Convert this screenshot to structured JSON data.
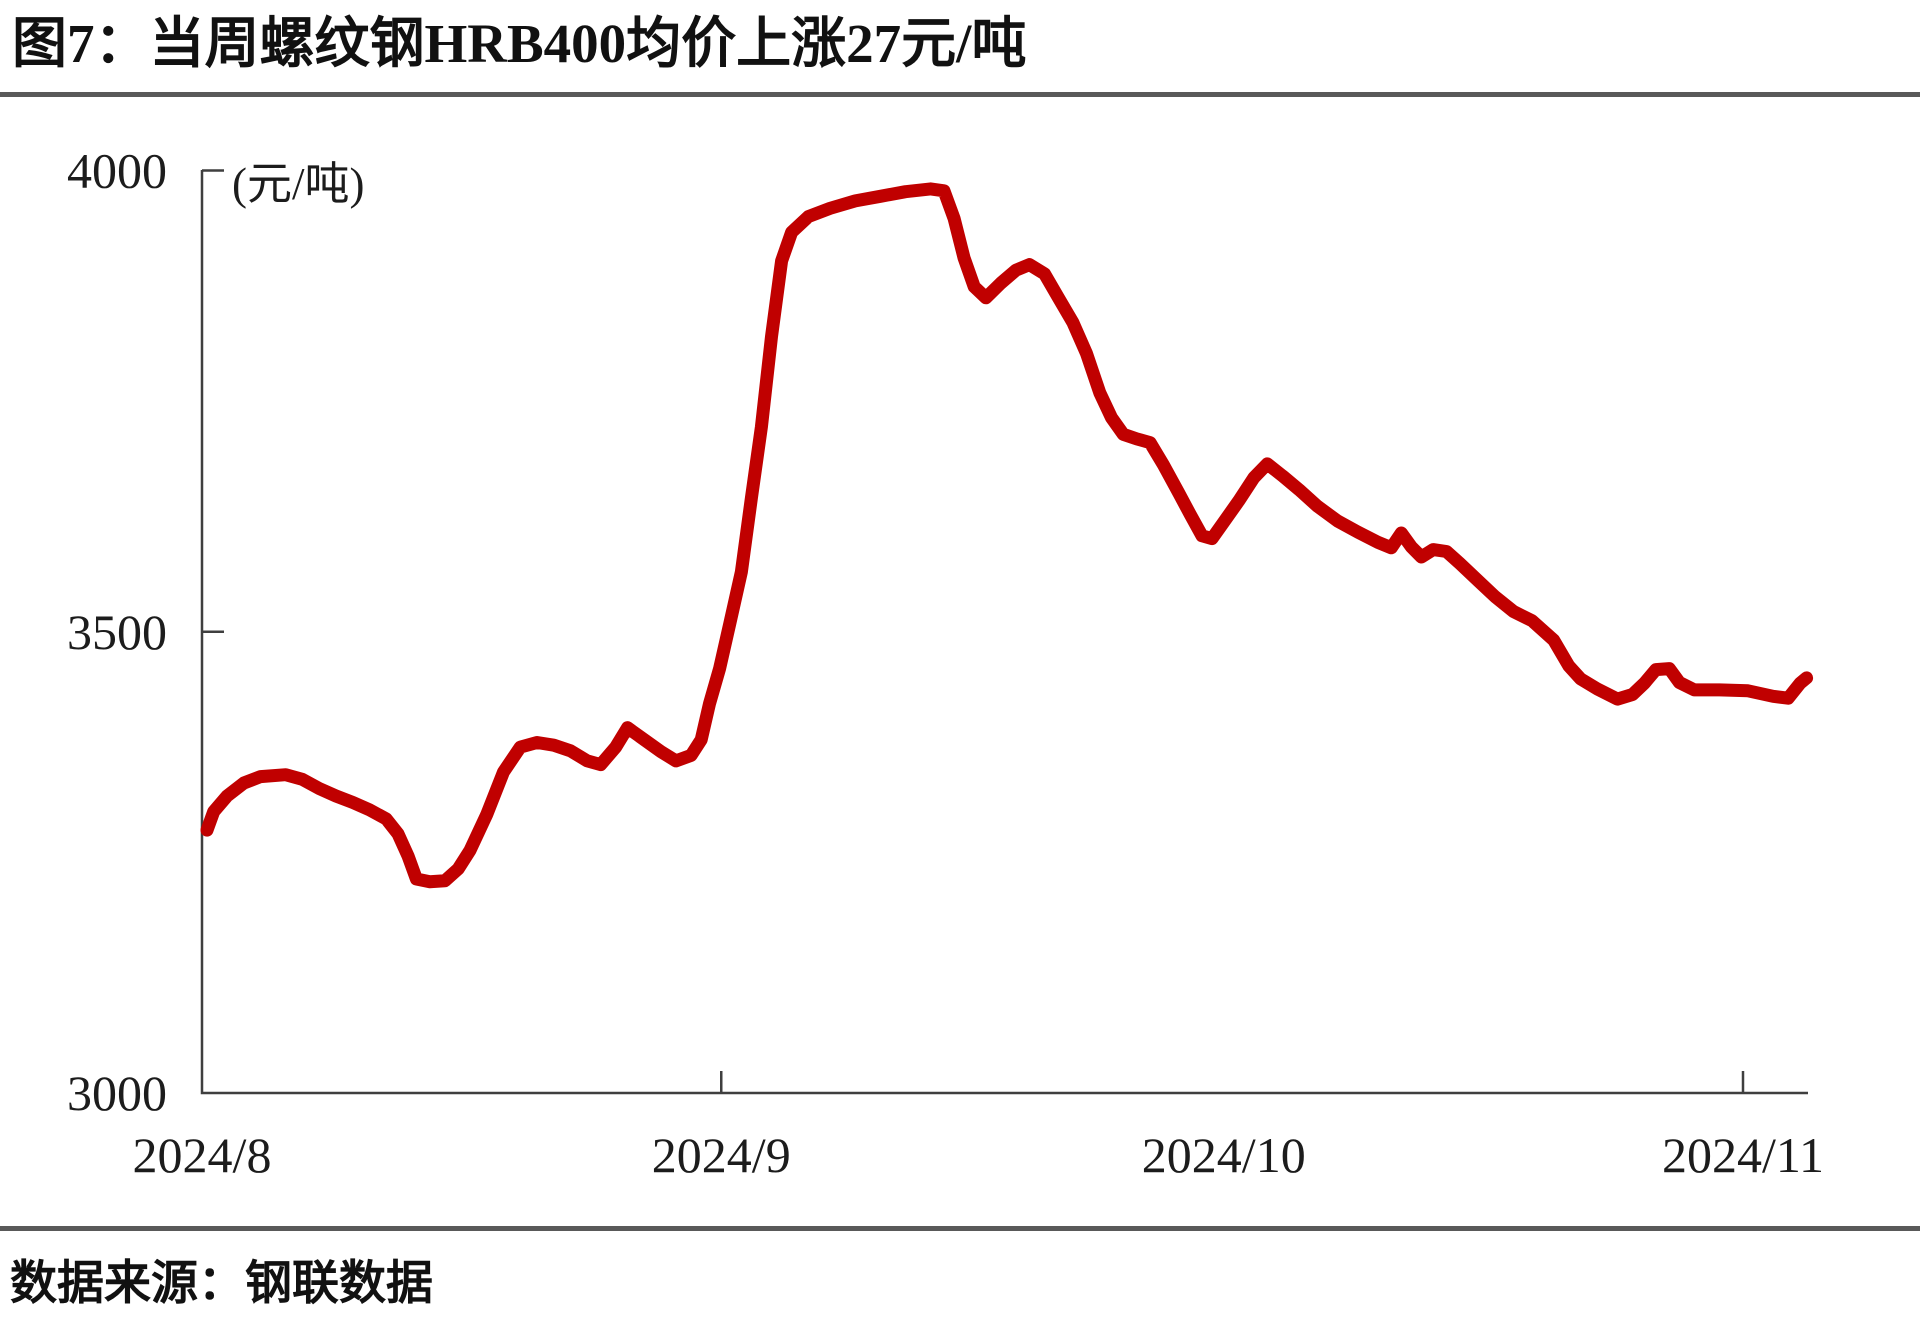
{
  "header": {
    "title": "图7：当周螺纹钢HRB400均价上涨27元/吨"
  },
  "footer": {
    "source": "数据来源：钢联数据"
  },
  "chart_data": {
    "type": "line",
    "title": "图7：当周螺纹钢HRB400均价上涨27元/吨",
    "unit_label": "(元/吨)",
    "legend_position": "none",
    "grid": false,
    "line_color": "#c00000",
    "axis_color": "#3f3f3f",
    "x_axis": {
      "epoch": "2024/8/1",
      "range_days": [
        0,
        96
      ],
      "month_labels": [
        {
          "day": 0,
          "label": "2024/8"
        },
        {
          "day": 31,
          "label": "2024/9"
        },
        {
          "day": 61,
          "label": "2024/10"
        },
        {
          "day": 92,
          "label": "2024/11"
        }
      ],
      "tick_days": [
        31,
        92
      ]
    },
    "y_axis": {
      "min": 3000,
      "max": 4000,
      "ticks": [
        {
          "value": 3000,
          "label": "3000"
        },
        {
          "value": 3500,
          "label": "3500"
        },
        {
          "value": 4000,
          "label": "4000"
        }
      ]
    },
    "series": [
      {
        "name": "螺纹钢HRB400均价",
        "unit": "元/吨",
        "points": [
          [
            0.3,
            3285
          ],
          [
            0.7,
            3305
          ],
          [
            1.5,
            3322
          ],
          [
            2.5,
            3336
          ],
          [
            3.5,
            3343
          ],
          [
            5,
            3345
          ],
          [
            6,
            3340
          ],
          [
            7,
            3330
          ],
          [
            8,
            3322
          ],
          [
            9,
            3315
          ],
          [
            10,
            3307
          ],
          [
            11,
            3297
          ],
          [
            11.7,
            3281
          ],
          [
            12.3,
            3257
          ],
          [
            12.8,
            3232
          ],
          [
            13.6,
            3229
          ],
          [
            14.5,
            3230
          ],
          [
            15.3,
            3243
          ],
          [
            16,
            3263
          ],
          [
            17,
            3302
          ],
          [
            18,
            3348
          ],
          [
            19,
            3375
          ],
          [
            20,
            3380
          ],
          [
            21,
            3377
          ],
          [
            22,
            3371
          ],
          [
            23,
            3360
          ],
          [
            23.8,
            3356
          ],
          [
            24.7,
            3375
          ],
          [
            25.4,
            3396
          ],
          [
            26.4,
            3383
          ],
          [
            27.4,
            3370
          ],
          [
            28.3,
            3360
          ],
          [
            29.2,
            3366
          ],
          [
            29.8,
            3383
          ],
          [
            30.3,
            3422
          ],
          [
            30.9,
            3460
          ],
          [
            31.5,
            3508
          ],
          [
            32.2,
            3565
          ],
          [
            32.8,
            3645
          ],
          [
            33.4,
            3722
          ],
          [
            34,
            3820
          ],
          [
            34.6,
            3902
          ],
          [
            35.2,
            3933
          ],
          [
            36.2,
            3950
          ],
          [
            37.5,
            3959
          ],
          [
            39,
            3967
          ],
          [
            40.5,
            3972
          ],
          [
            42,
            3977
          ],
          [
            43.5,
            3980
          ],
          [
            44.3,
            3978
          ],
          [
            44.9,
            3948
          ],
          [
            45.5,
            3905
          ],
          [
            46.1,
            3874
          ],
          [
            46.8,
            3862
          ],
          [
            47.7,
            3878
          ],
          [
            48.6,
            3892
          ],
          [
            49.4,
            3898
          ],
          [
            50.3,
            3888
          ],
          [
            51.1,
            3863
          ],
          [
            52,
            3835
          ],
          [
            52.8,
            3802
          ],
          [
            53.6,
            3759
          ],
          [
            54.3,
            3732
          ],
          [
            55,
            3714
          ],
          [
            55.8,
            3709
          ],
          [
            56.6,
            3705
          ],
          [
            57.4,
            3681
          ],
          [
            58.3,
            3651
          ],
          [
            59,
            3627
          ],
          [
            59.7,
            3604
          ],
          [
            60.3,
            3601
          ],
          [
            61,
            3619
          ],
          [
            61.9,
            3642
          ],
          [
            62.8,
            3667
          ],
          [
            63.6,
            3682
          ],
          [
            64.5,
            3669
          ],
          [
            65.5,
            3654
          ],
          [
            66.6,
            3636
          ],
          [
            67.8,
            3620
          ],
          [
            69,
            3608
          ],
          [
            70.2,
            3597
          ],
          [
            71,
            3591
          ],
          [
            71.6,
            3607
          ],
          [
            72.2,
            3592
          ],
          [
            72.8,
            3581
          ],
          [
            73.5,
            3589
          ],
          [
            74.3,
            3587
          ],
          [
            75.1,
            3574
          ],
          [
            76.2,
            3555
          ],
          [
            77.2,
            3538
          ],
          [
            78.3,
            3522
          ],
          [
            79.4,
            3512
          ],
          [
            80.7,
            3491
          ],
          [
            81.6,
            3463
          ],
          [
            82.3,
            3449
          ],
          [
            83.3,
            3438
          ],
          [
            84.5,
            3427
          ],
          [
            85.4,
            3432
          ],
          [
            86.1,
            3444
          ],
          [
            86.8,
            3459
          ],
          [
            87.6,
            3460
          ],
          [
            88.2,
            3445
          ],
          [
            89.1,
            3437
          ],
          [
            90.6,
            3437
          ],
          [
            92.3,
            3436
          ],
          [
            93.8,
            3430
          ],
          [
            94.7,
            3428
          ],
          [
            95.4,
            3444
          ],
          [
            95.8,
            3450
          ]
        ]
      }
    ]
  }
}
